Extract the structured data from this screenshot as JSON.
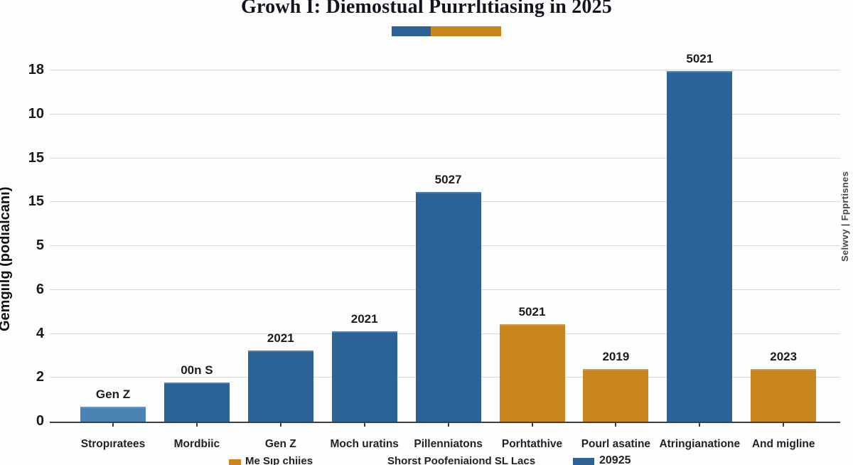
{
  "title": "Growh I: Diemostual Puırrlıtiasing in 2025",
  "colors": {
    "blue": "#2b6396",
    "light_blue": "#4a84b5",
    "orange": "#c9861f",
    "gridline": "#d8d8d8",
    "axis": "#3f3f3f"
  },
  "top_legend": {
    "blue_swatch_color": "#2b6396",
    "orange_swatch_color": "#c9861f",
    "blue_width": 55,
    "orange_width": 99
  },
  "y_axis": {
    "label": "Gemgiilg (podialcani)",
    "tick_labels_top_to_bottom": [
      "18",
      "10",
      "15",
      "15",
      "5",
      "6",
      "4",
      "2",
      "0"
    ]
  },
  "right_axis_label": "Selwvy | Fpprtisnes",
  "bottom_legend": {
    "orange_label": "Me Sıp chiies",
    "center_label": "Shorst Poofeniaiond SL Lacs",
    "blue_label": "20925"
  },
  "chart_data": {
    "type": "bar",
    "title": "Growh I: Diemostual Puırrlıtiasing in 2025",
    "categories": [
      "Stropıratees",
      "Mordbiic",
      "Gen Z",
      "Moch uratins",
      "Pillenniatons",
      "Porhtathive",
      "Pourl asatine",
      "Atringianatione",
      "And migline"
    ],
    "series": [
      {
        "name": "bars",
        "values": [
          0.36,
          0.9,
          1.63,
          2.08,
          5.25,
          2.23,
          1.21,
          8.0,
          1.21
        ]
      }
    ],
    "bar_value_labels": [
      "Gen Z",
      "00n S",
      "2021",
      "2021",
      "5027",
      "5021",
      "2019",
      "5021",
      "2023"
    ],
    "bar_color_keys": [
      "light_blue",
      "blue",
      "blue",
      "blue",
      "blue",
      "orange",
      "orange",
      "blue",
      "orange"
    ],
    "xlabel": "",
    "ylabel": "Gemgiilg (podialcani)",
    "y_tick_labels_top_to_bottom": [
      "18",
      "10",
      "15",
      "15",
      "5",
      "6",
      "4",
      "2",
      "0"
    ],
    "ylim_units": [
      0,
      8
    ],
    "grid": "horizontal",
    "legend_position": "top-center",
    "note": "values are in evenly spaced gridline units; axis tick labels as printed are non-monotonic"
  }
}
